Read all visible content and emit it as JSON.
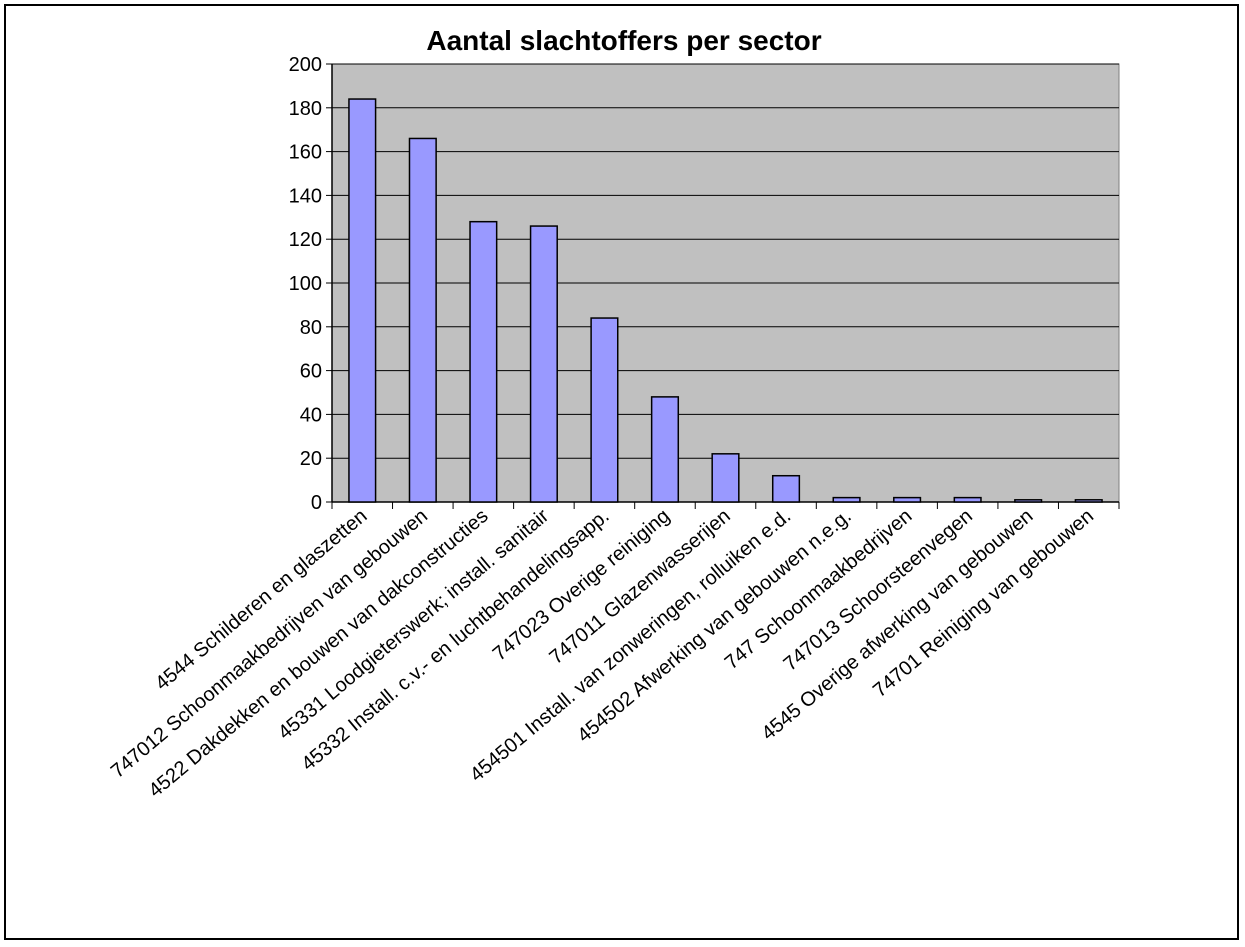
{
  "chart_data": {
    "type": "bar",
    "title": "Aantal slachtoffers per sector",
    "xlabel": "",
    "ylabel": "",
    "ylim": [
      0,
      200
    ],
    "yticks": [
      0,
      20,
      40,
      60,
      80,
      100,
      120,
      140,
      160,
      180,
      200
    ],
    "grid": true,
    "legend": "none",
    "categories": [
      "4544 Schilderen en glaszetten",
      "747012 Schoonmaakbedrijven van gebouwen",
      "4522 Dakdekken en bouwen van dakconstructies",
      "45331 Loodgieterswerk; install. sanitair",
      "45332 Install. c.v.- en luchtbehandelingsapp.",
      "747023 Overige reiniging",
      "747011 Glazenwasserijen",
      "454501 Install. van zonweringen, rolluiken e.d.",
      "454502 Afwerking van gebouwen n.e.g.",
      "747 Schoonmaakbedrijven",
      "747013 Schoorsteenvegen",
      "4545 Overige afwerking van gebouwen",
      "74701 Reiniging van gebouwen"
    ],
    "values": [
      184,
      166,
      128,
      126,
      84,
      48,
      22,
      12,
      2,
      2,
      2,
      1,
      1
    ],
    "colors": {
      "bar_fill": "#9999ff",
      "bar_stroke": "#000000",
      "plot_bg": "#c0c0c0",
      "grid": "#000000"
    }
  }
}
